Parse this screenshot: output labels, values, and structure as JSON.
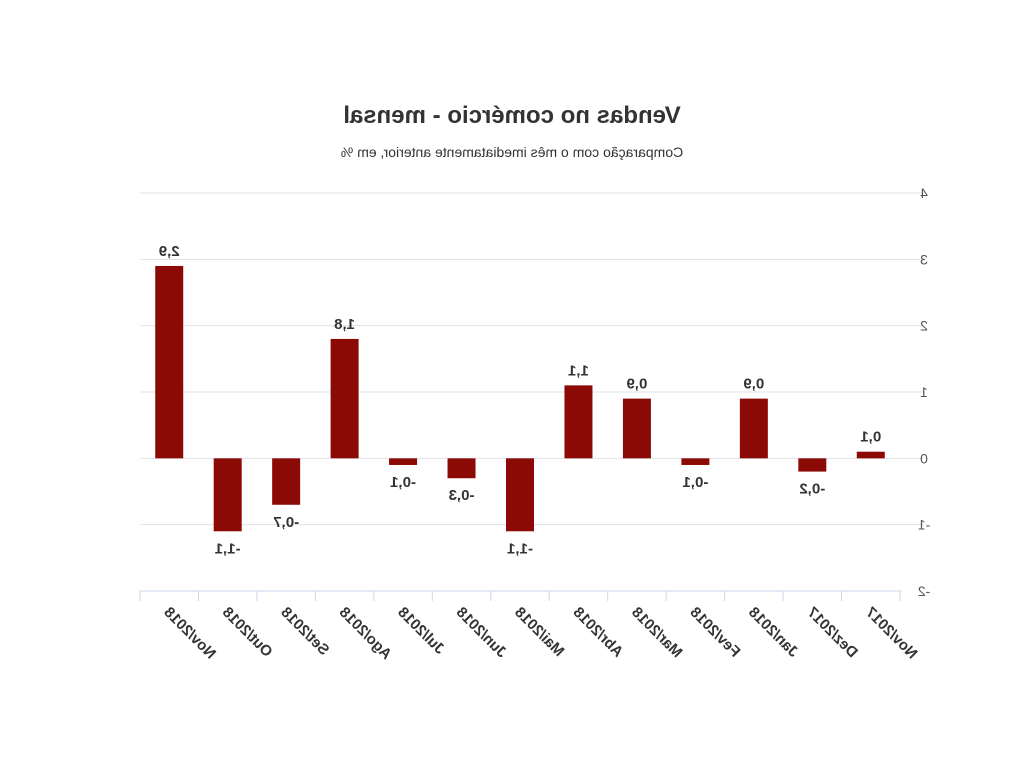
{
  "chart_data": {
    "type": "bar",
    "title": "Vendas no comércio - mensal",
    "subtitle": "Comparação com o mês imediatamente anterior, em %",
    "categories": [
      "Nov/2017",
      "Dez/2017",
      "Jan/2018",
      "Fev/2018",
      "Mar/2018",
      "Abr/2018",
      "Mai/2018",
      "Jun/2018",
      "Jul/2018",
      "Ago/2018",
      "Set/2018",
      "Out/2018",
      "Nov/2018"
    ],
    "values": [
      0.1,
      -0.2,
      0.9,
      -0.1,
      0.9,
      1.1,
      -1.1,
      -0.3,
      -0.1,
      1.8,
      -0.7,
      -1.1,
      2.9
    ],
    "data_labels": [
      "0,1",
      "-0,2",
      "0,9",
      "-0,1",
      "0,9",
      "1,1",
      "-1,1",
      "-0,3",
      "-0,1",
      "1,8",
      "-0,7",
      "-1,1",
      "2,9"
    ],
    "y_ticks": [
      -2,
      -1,
      0,
      1,
      2,
      3,
      4
    ],
    "ylim": [
      -2,
      4
    ],
    "xlabel": "",
    "ylabel": "",
    "grid": true,
    "mirrored": true,
    "colors": {
      "bar": "#8b0a05",
      "grid": "#e1e3ea",
      "axis": "#ccd6eb",
      "text": "#333333",
      "tick_text": "#555555"
    }
  }
}
